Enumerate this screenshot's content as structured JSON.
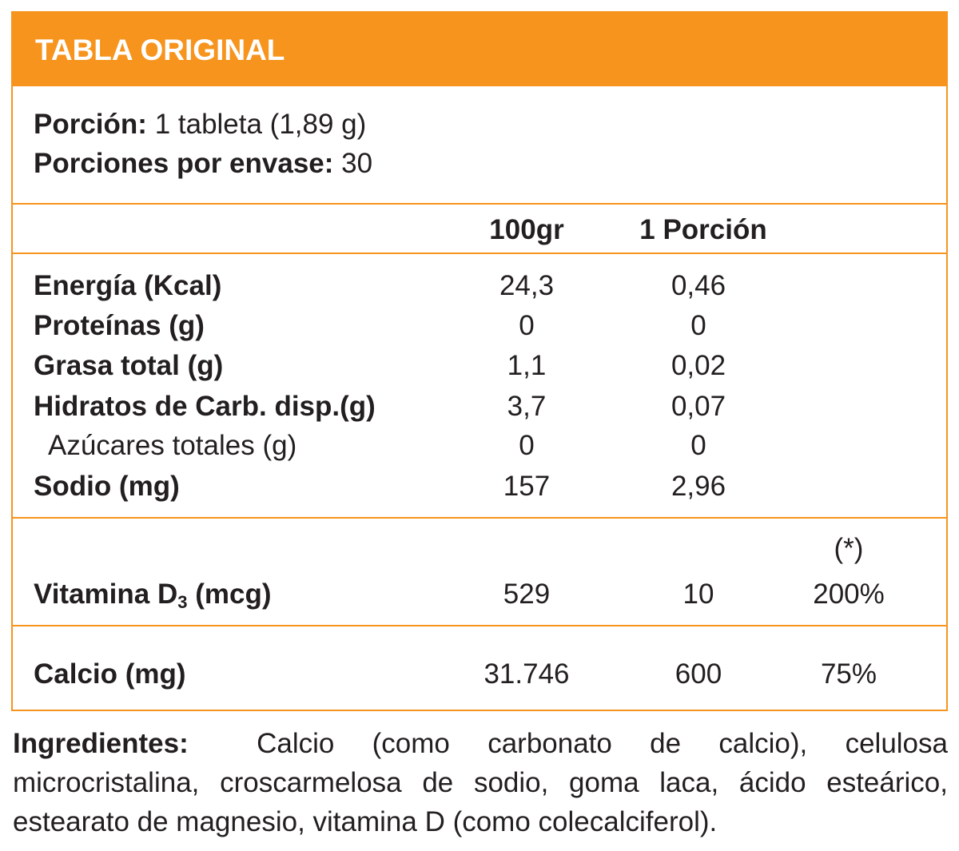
{
  "header": {
    "title": "TABLA ORIGINAL"
  },
  "serving": {
    "portion_label": "Porción:",
    "portion_value": "1 tableta (1,89 g)",
    "servings_label": "Porciones por envase:",
    "servings_value": "30"
  },
  "columns": {
    "per100": "100gr",
    "perPortion": "1 Porción"
  },
  "nutrients": [
    {
      "name": "Energía (Kcal)",
      "per100": "24,3",
      "perPortion": "0,46"
    },
    {
      "name": "Proteínas (g)",
      "per100": "0",
      "perPortion": "0"
    },
    {
      "name": "Grasa total (g)",
      "per100": "1,1",
      "perPortion": "0,02"
    },
    {
      "name": "Hidratos de Carb. disp.(g)",
      "per100": "3,7",
      "perPortion": "0,07"
    },
    {
      "name": "Azúcares totales (g)",
      "per100": "0",
      "perPortion": "0"
    },
    {
      "name": "Sodio (mg)",
      "per100": "157",
      "perPortion": "2,96"
    }
  ],
  "vitamin": {
    "name_prefix": "Vitamina D",
    "name_sub": "3",
    "name_suffix": " (mcg)",
    "per100": "529",
    "perPortion": "10",
    "dv_note": "(*)",
    "dv": "200%"
  },
  "calcium": {
    "name": "Calcio (mg)",
    "per100": "31.746",
    "perPortion": "600",
    "dv": "75%"
  },
  "ingredients": {
    "label": "Ingredientes:",
    "text": "Calcio (como carbonato de calcio), celulosa microcristalina, croscarmelosa de sodio, goma laca, ácido esteárico, estearato de magnesio, vitamina D (como colecalciferol)."
  }
}
